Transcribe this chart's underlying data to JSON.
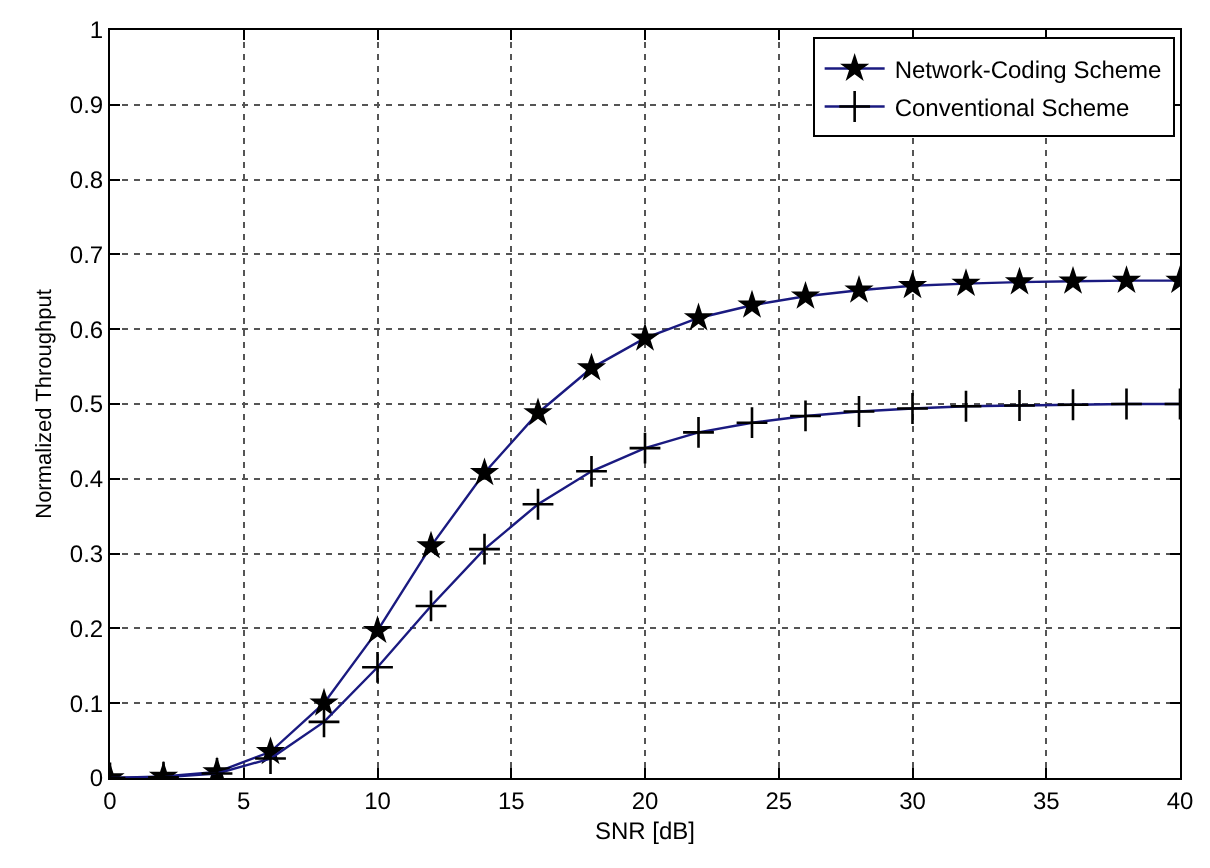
{
  "chart_data": {
    "type": "line",
    "xlabel": "SNR [dB]",
    "ylabel": "Normalized Throughput",
    "x": [
      0,
      2,
      4,
      6,
      8,
      10,
      12,
      14,
      16,
      18,
      20,
      22,
      24,
      26,
      28,
      30,
      32,
      34,
      36,
      38,
      40
    ],
    "series": [
      {
        "name": "Network-Coding Scheme",
        "color": "#1a1a80",
        "marker": "star",
        "values": [
          0,
          0.002,
          0.008,
          0.035,
          0.1,
          0.197,
          0.31,
          0.408,
          0.488,
          0.548,
          0.588,
          0.615,
          0.632,
          0.644,
          0.652,
          0.658,
          0.661,
          0.663,
          0.664,
          0.665,
          0.665
        ]
      },
      {
        "name": "Conventional Scheme",
        "color": "#1a1a80",
        "marker": "cross",
        "values": [
          0,
          0.001,
          0.006,
          0.026,
          0.075,
          0.148,
          0.23,
          0.306,
          0.366,
          0.41,
          0.441,
          0.462,
          0.475,
          0.484,
          0.49,
          0.494,
          0.497,
          0.498,
          0.499,
          0.5,
          0.5
        ]
      }
    ],
    "xlim": [
      0,
      40
    ],
    "xticks": [
      0,
      5,
      10,
      15,
      20,
      25,
      30,
      35,
      40
    ],
    "ylim": [
      0,
      1
    ],
    "yticks": [
      0,
      0.1,
      0.2,
      0.3,
      0.4,
      0.5,
      0.6,
      0.7,
      0.8,
      0.9,
      1
    ],
    "grid": true,
    "legend": "top right",
    "line_style": "solid"
  }
}
